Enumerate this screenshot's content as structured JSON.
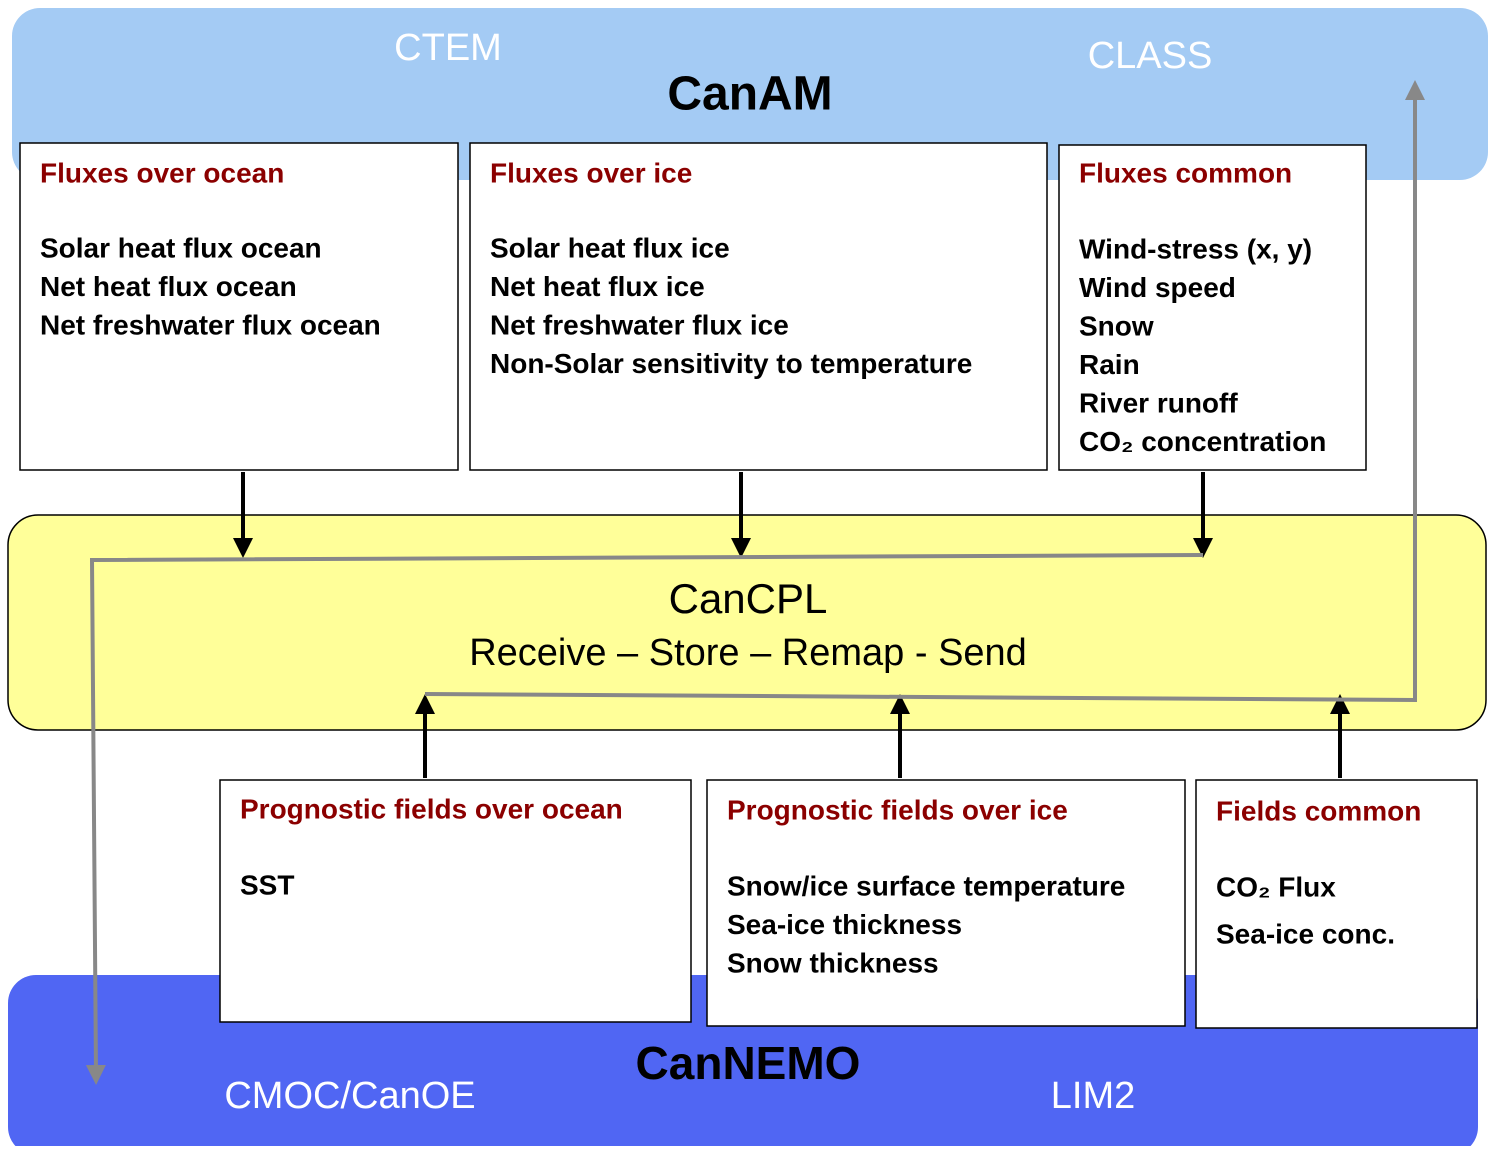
{
  "canam": {
    "title": "CanAM",
    "components": [
      "CTEM",
      "CLASS"
    ]
  },
  "cancpl": {
    "title": "CanCPL",
    "subtitle": "Receive – Store – Remap - Send"
  },
  "cannemo": {
    "title": "CanNEMO",
    "components": [
      "CMOC/CanOE",
      "LIM2"
    ]
  },
  "upper_boxes": [
    {
      "title": "Fluxes over ocean",
      "items": [
        "Solar heat flux ocean",
        "Net heat flux ocean",
        "Net freshwater flux ocean"
      ]
    },
    {
      "title": "Fluxes over ice",
      "items": [
        "Solar heat flux ice",
        "Net heat flux ice",
        "Net freshwater flux ice",
        "Non-Solar sensitivity to temperature"
      ]
    },
    {
      "title": "Fluxes common",
      "items": [
        "Wind-stress (x, y)",
        "Wind speed",
        "Snow",
        "Rain",
        "River runoff",
        "CO₂ concentration"
      ]
    }
  ],
  "lower_boxes": [
    {
      "title": "Prognostic fields over ocean",
      "items": [
        "SST"
      ]
    },
    {
      "title": "Prognostic fields over ice",
      "items": [
        "Snow/ice surface temperature",
        "Sea-ice thickness",
        "Snow thickness"
      ]
    },
    {
      "title": "Fields common",
      "items": [
        "CO₂ Flux",
        "Sea-ice conc."
      ]
    }
  ]
}
